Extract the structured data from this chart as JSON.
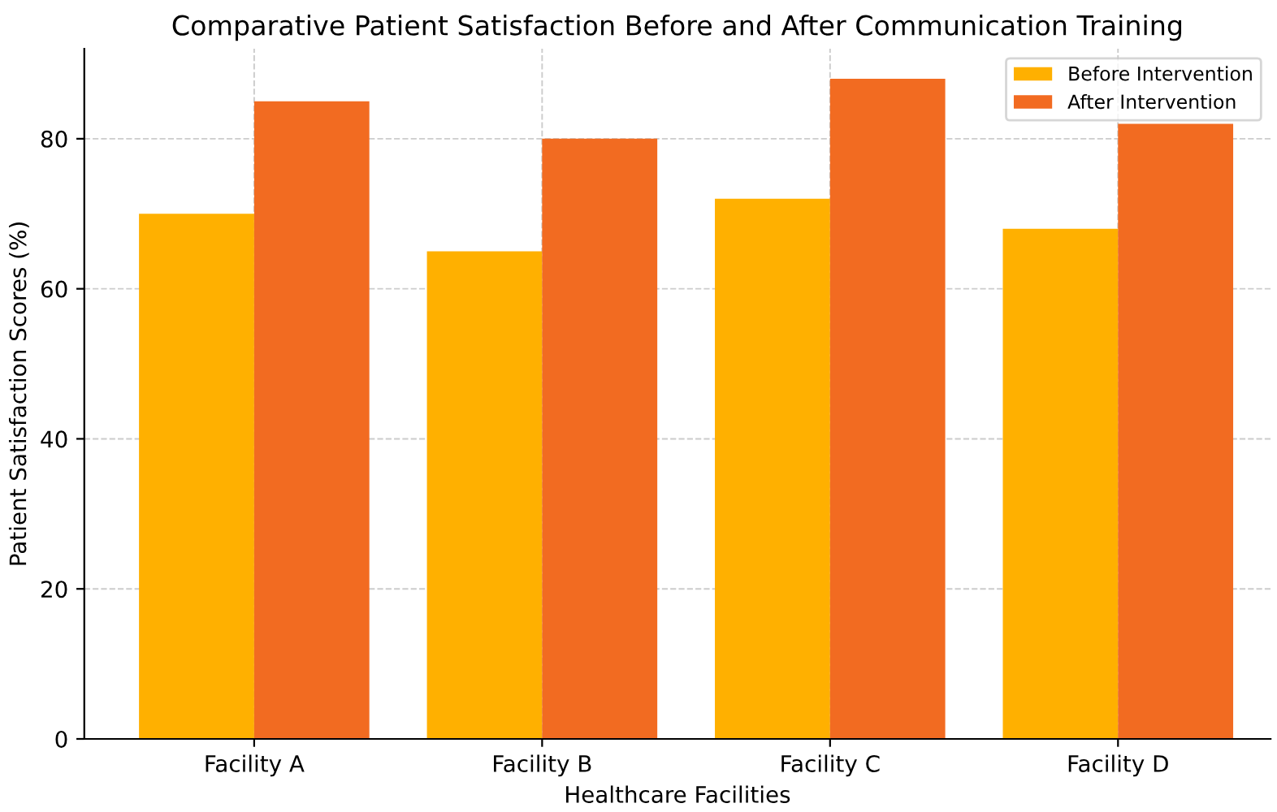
{
  "chart_data": {
    "type": "bar",
    "title": "Comparative Patient Satisfaction Before and After Communication Training",
    "xlabel": "Healthcare Facilities",
    "ylabel": "Patient Satisfaction Scores (%)",
    "categories": [
      "Facility A",
      "Facility B",
      "Facility C",
      "Facility D"
    ],
    "series": [
      {
        "name": "Before Intervention",
        "color": "#ffb000",
        "values": [
          70,
          65,
          72,
          68
        ]
      },
      {
        "name": "After Intervention",
        "color": "#f26b21",
        "values": [
          85,
          80,
          88,
          82
        ]
      }
    ],
    "ylim": [
      0,
      92
    ],
    "yticks": [
      0,
      20,
      40,
      60,
      80
    ],
    "grid": true,
    "legend": "top right"
  }
}
